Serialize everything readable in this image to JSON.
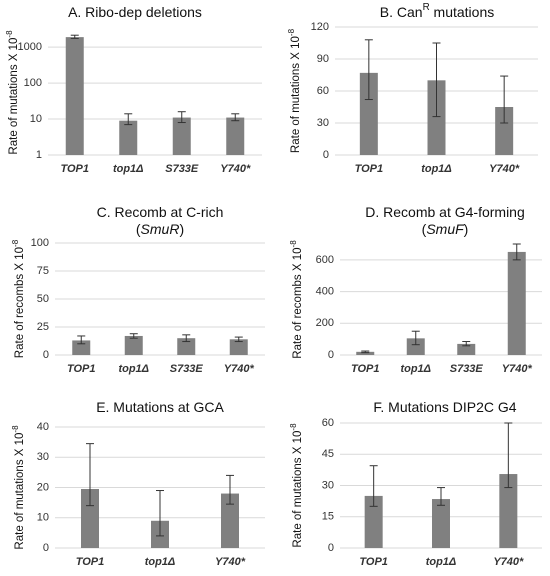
{
  "chart_data": [
    {
      "type": "bar",
      "title": [
        [
          {
            "text": "A. Ribo-dep deletions"
          }
        ]
      ],
      "y_label": [
        {
          "text": "Rate of mutations X 10"
        },
        {
          "text": "-8",
          "style": "sup"
        }
      ],
      "categories": [
        "TOP1",
        "top1Δ",
        "S733E",
        "Y740*"
      ],
      "values": [
        1900,
        9,
        11,
        11
      ],
      "err_low": [
        1750,
        7,
        8,
        9
      ],
      "err_high": [
        2150,
        14,
        16,
        14
      ],
      "log_y": true,
      "ylim": [
        1,
        3000
      ],
      "yticks": [
        1,
        10,
        100,
        1000
      ],
      "grid": true,
      "color": "#808080"
    },
    {
      "type": "bar",
      "title": [
        [
          {
            "text": "B. Can"
          },
          {
            "text": "R",
            "style": "sup"
          },
          {
            "text": " mutations"
          }
        ]
      ],
      "y_label": [
        {
          "text": "Rate of mutations X 10"
        },
        {
          "text": "-8",
          "style": "sup"
        }
      ],
      "categories": [
        "TOP1",
        "top1Δ",
        "Y740*"
      ],
      "values": [
        77,
        70,
        45
      ],
      "err_low": [
        52,
        36,
        30
      ],
      "err_high": [
        108,
        105,
        74
      ],
      "ylim": [
        0,
        120
      ],
      "yticks": [
        0,
        30,
        60,
        90,
        120
      ],
      "grid": true,
      "color": "#808080"
    },
    {
      "type": "bar",
      "title": [
        [
          {
            "text": "C. Recomb at C-rich"
          }
        ],
        [
          {
            "text": "("
          },
          {
            "text": "SmuR",
            "style": "italic"
          },
          {
            "text": ")"
          }
        ]
      ],
      "y_label": [
        {
          "text": "Rate of recombs X 10"
        },
        {
          "text": "-8",
          "style": "sup"
        }
      ],
      "categories": [
        "TOP1",
        "top1Δ",
        "S733E",
        "Y740*"
      ],
      "values": [
        13,
        17,
        15,
        14
      ],
      "err_low": [
        10,
        15,
        12,
        12
      ],
      "err_high": [
        17,
        19,
        18,
        16
      ],
      "ylim": [
        0,
        100
      ],
      "yticks": [
        0,
        25,
        50,
        75,
        100
      ],
      "grid": true,
      "color": "#808080"
    },
    {
      "type": "bar",
      "title": [
        [
          {
            "text": "D. Recomb at G4-forming"
          }
        ],
        [
          {
            "text": "("
          },
          {
            "text": "SmuF",
            "style": "italic"
          },
          {
            "text": ")"
          }
        ]
      ],
      "y_label": [
        {
          "text": "Rate of recombs X 10"
        },
        {
          "text": "-8",
          "style": "sup"
        }
      ],
      "categories": [
        "TOP1",
        "top1Δ",
        "S733E",
        "Y740*"
      ],
      "values": [
        20,
        105,
        70,
        650
      ],
      "err_low": [
        15,
        65,
        58,
        600
      ],
      "err_high": [
        25,
        150,
        85,
        700
      ],
      "ylim": [
        0,
        700
      ],
      "yticks": [
        0,
        200,
        400,
        600
      ],
      "grid": true,
      "color": "#808080"
    },
    {
      "type": "bar",
      "title": [
        [
          {
            "text": "E. Mutations at GCA"
          }
        ]
      ],
      "y_label": [
        {
          "text": "Rate of mutations X 10"
        },
        {
          "text": "-8",
          "style": "sup"
        }
      ],
      "categories": [
        "TOP1",
        "top1Δ",
        "Y740*"
      ],
      "values": [
        19.5,
        9,
        18
      ],
      "err_low": [
        14,
        4,
        14.5
      ],
      "err_high": [
        34.5,
        19,
        24
      ],
      "ylim": [
        0,
        40
      ],
      "yticks": [
        0,
        10,
        20,
        30,
        40
      ],
      "grid": true,
      "color": "#808080"
    },
    {
      "type": "bar",
      "title": [
        [
          {
            "text": "F. Mutations DIP2C G4"
          }
        ]
      ],
      "y_label": [
        {
          "text": "Rate of mutations X 10"
        },
        {
          "text": "-8",
          "style": "sup"
        }
      ],
      "categories": [
        "TOP1",
        "top1Δ",
        "Y740*"
      ],
      "values": [
        25,
        23.5,
        35.5
      ],
      "err_low": [
        20,
        20.5,
        29
      ],
      "err_high": [
        39.5,
        29,
        60
      ],
      "ylim": [
        0,
        60
      ],
      "yticks": [
        0,
        15,
        30,
        45,
        60
      ],
      "grid": true,
      "color": "#808080"
    }
  ]
}
